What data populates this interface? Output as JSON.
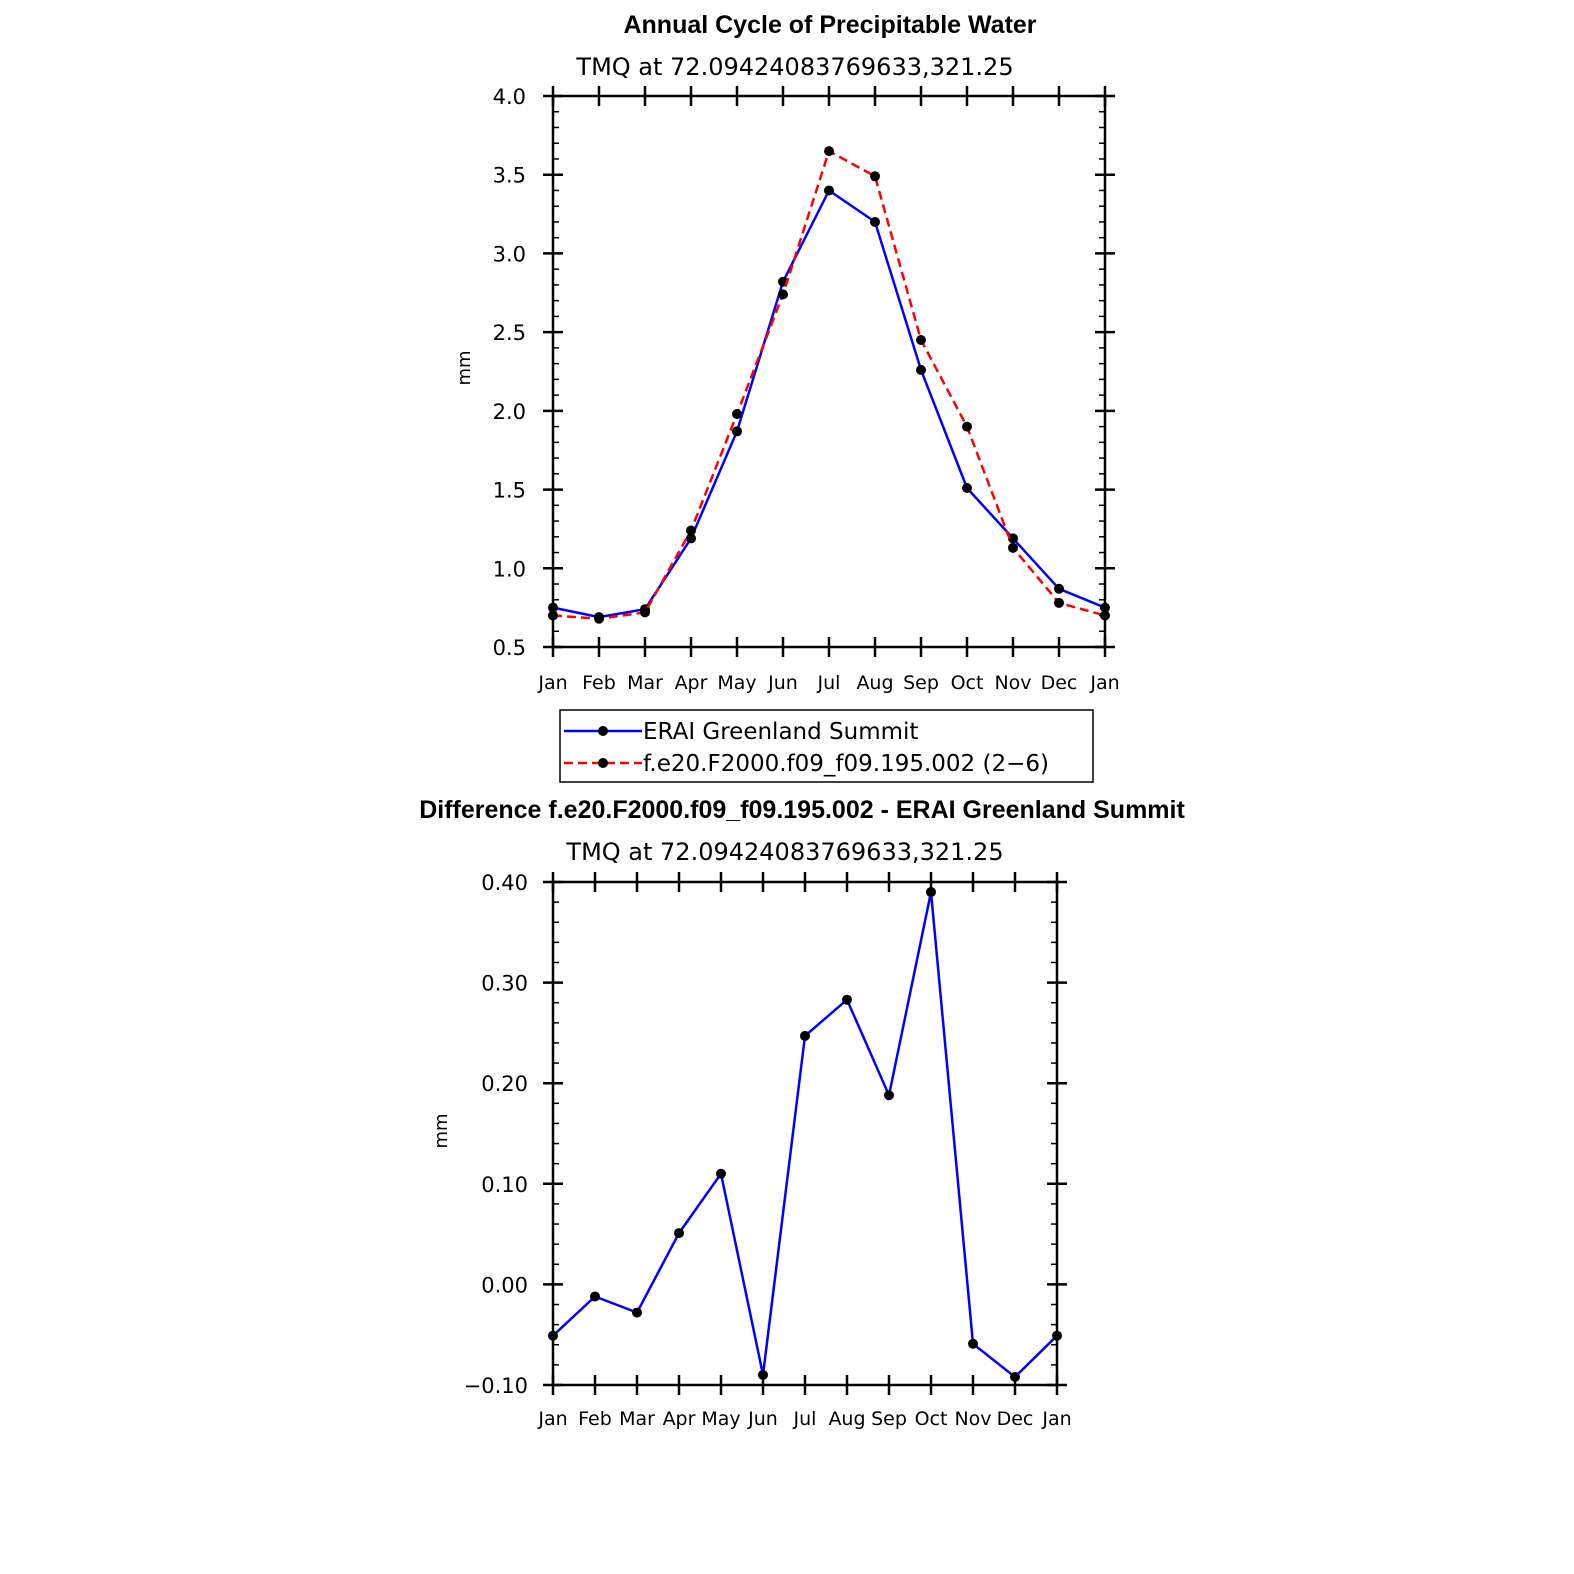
{
  "chart_data": [
    {
      "type": "line",
      "title": "Annual Cycle of Precipitable Water",
      "subtitle": "TMQ at 72.09424083769633,321.25",
      "xlabel": "",
      "ylabel": "mm",
      "categories": [
        "Jan",
        "Feb",
        "Mar",
        "Apr",
        "May",
        "Jun",
        "Jul",
        "Aug",
        "Sep",
        "Oct",
        "Nov",
        "Dec",
        "Jan"
      ],
      "ylim": [
        0.5,
        4.0
      ],
      "yticks": [
        0.5,
        1.0,
        1.5,
        2.0,
        2.5,
        3.0,
        3.5,
        4.0
      ],
      "ytick_labels": [
        "0.5",
        "1.0",
        "1.5",
        "2.0",
        "2.5",
        "3.0",
        "3.5",
        "4.0"
      ],
      "grid": false,
      "legend_position": "below",
      "series": [
        {
          "name": "ERAI Greenland Summit",
          "color": "#0000ff",
          "dash": "solid",
          "marker_color": "#000000",
          "values": [
            0.75,
            0.69,
            0.74,
            1.19,
            1.87,
            2.82,
            3.4,
            3.2,
            2.26,
            1.51,
            1.19,
            0.87,
            0.75
          ]
        },
        {
          "name": "f.e20.F2000.f09_f09.195.002 (2−6)",
          "color": "#ff0000",
          "dash": "dashed",
          "marker_color": "#000000",
          "values": [
            0.7,
            0.68,
            0.72,
            1.24,
            1.98,
            2.74,
            3.65,
            3.49,
            2.45,
            1.9,
            1.13,
            0.78,
            0.7
          ]
        }
      ]
    },
    {
      "type": "line",
      "title": "Difference f.e20.F2000.f09_f09.195.002 - ERAI Greenland Summit",
      "subtitle": "TMQ at 72.09424083769633,321.25",
      "xlabel": "",
      "ylabel": "mm",
      "categories": [
        "Jan",
        "Feb",
        "Mar",
        "Apr",
        "May",
        "Jun",
        "Jul",
        "Aug",
        "Sep",
        "Oct",
        "Nov",
        "Dec",
        "Jan"
      ],
      "ylim": [
        -0.1,
        0.4
      ],
      "yticks": [
        -0.1,
        0.0,
        0.1,
        0.2,
        0.3,
        0.4
      ],
      "ytick_labels": [
        "−0.10",
        "0.00",
        "0.10",
        "0.20",
        "0.30",
        "0.40"
      ],
      "grid": false,
      "series": [
        {
          "name": "Difference",
          "color": "#0000ff",
          "dash": "solid",
          "marker_color": "#000000",
          "values": [
            -0.051,
            -0.012,
            -0.028,
            0.051,
            0.11,
            -0.09,
            0.247,
            0.283,
            0.188,
            0.39,
            -0.059,
            -0.092,
            -0.051
          ]
        }
      ]
    }
  ]
}
